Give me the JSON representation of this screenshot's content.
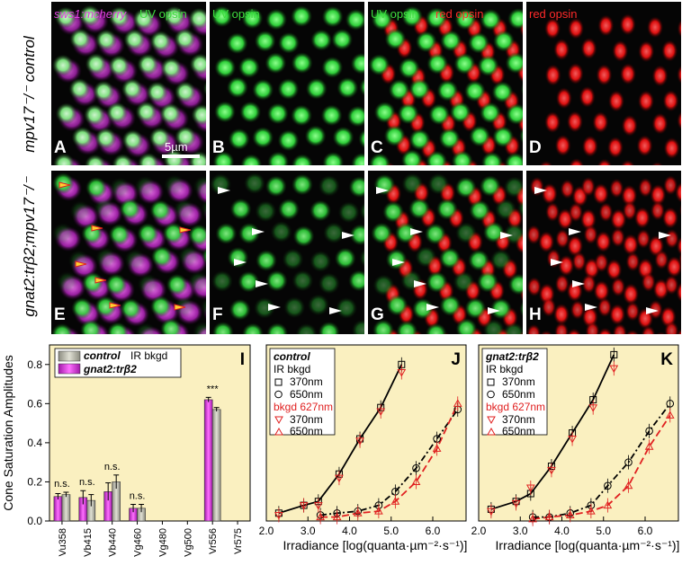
{
  "rows": [
    {
      "label": "mpv17⁻/⁻ control"
    },
    {
      "label": "gnat2:trβ2;mpv17⁻/⁻"
    }
  ],
  "panels": [
    {
      "letter": "A",
      "tag1": "sws1:mcherry",
      "tag2": "UV opsin"
    },
    {
      "letter": "B",
      "tag1": "UV opsin"
    },
    {
      "letter": "C",
      "tag1": "UV opsin",
      "tag2": "red opsin"
    },
    {
      "letter": "D",
      "tag1": "red opsin"
    },
    {
      "letter": "E"
    },
    {
      "letter": "F"
    },
    {
      "letter": "G"
    },
    {
      "letter": "H"
    }
  ],
  "scale_bar": "5µm",
  "colors": {
    "magenta": "#e040e0",
    "green": "#3fdc3f",
    "red": "#ff1e1e",
    "cream": "#faf0c0",
    "bar_gray": "#b8b8a8"
  },
  "chart_data": [
    {
      "type": "bar",
      "panel": "I",
      "ylabel": "Cone Saturation Amplitudes",
      "ylim": [
        0,
        0.9
      ],
      "yticks": [
        "0.0",
        "0.2",
        "0.4",
        "0.6",
        "0.8"
      ],
      "categories": [
        "Vu358",
        "Vb415",
        "Vb440",
        "Vg460",
        "Vg480",
        "Vg500",
        "Vr556",
        "Vr575"
      ],
      "legend": {
        "title_a": "control",
        "title_b": "IR bkgd",
        "entry2": "gnat2:trβ2"
      },
      "series": [
        {
          "name": "gnat2:trβ2",
          "values": [
            0.125,
            0.12,
            0.15,
            0.065,
            null,
            null,
            0.62,
            null
          ],
          "errors": [
            0.015,
            0.035,
            0.045,
            0.02,
            null,
            null,
            0.012,
            null
          ]
        },
        {
          "name": "control",
          "values": [
            0.135,
            0.105,
            0.2,
            0.065,
            null,
            null,
            0.57,
            null
          ],
          "errors": [
            0.012,
            0.03,
            0.035,
            0.02,
            null,
            null,
            0.01,
            null
          ]
        }
      ],
      "annotations": [
        {
          "category": "Vu358",
          "text": "n.s."
        },
        {
          "category": "Vb415",
          "text": "n.s."
        },
        {
          "category": "Vb440",
          "text": "n.s."
        },
        {
          "category": "Vg460",
          "text": "n.s."
        },
        {
          "category": "Vr556",
          "text": "***"
        }
      ]
    },
    {
      "type": "scatter",
      "panel": "J",
      "xlabel": "Irradiance [log(quanta·µm⁻²·s⁻¹)]",
      "xlim": [
        2.0,
        6.8
      ],
      "ylim": [
        0,
        0.9
      ],
      "xticks": [
        "2.0",
        "3.0",
        "4.0",
        "5.0",
        "6.0"
      ],
      "legend": {
        "title": "control",
        "group1": "IR bkgd",
        "group2": "bkgd 627nm",
        "e370": "370nm",
        "e650": "650nm"
      },
      "series": [
        {
          "name": "370nm IR bkgd",
          "x": [
            2.3,
            2.9,
            3.25,
            3.75,
            4.25,
            4.75,
            5.25
          ],
          "y": [
            0.04,
            0.08,
            0.1,
            0.24,
            0.42,
            0.58,
            0.8
          ]
        },
        {
          "name": "650nm IR bkgd",
          "x": [
            3.3,
            3.7,
            4.2,
            4.7,
            5.1,
            5.6,
            6.1,
            6.6
          ],
          "y": [
            0.03,
            0.04,
            0.05,
            0.08,
            0.15,
            0.27,
            0.42,
            0.57
          ]
        },
        {
          "name": "370nm bkgd 627nm",
          "x": [
            2.3,
            2.9,
            3.25,
            3.75,
            4.25,
            4.75,
            5.25
          ],
          "y": [
            0.03,
            0.08,
            0.08,
            0.22,
            0.41,
            0.56,
            0.76
          ]
        },
        {
          "name": "650nm bkgd 627nm",
          "x": [
            3.3,
            3.7,
            4.2,
            4.7,
            5.1,
            5.6,
            6.1,
            6.6
          ],
          "y": [
            0.02,
            0.02,
            0.04,
            0.05,
            0.1,
            0.2,
            0.37,
            0.6
          ]
        }
      ]
    },
    {
      "type": "scatter",
      "panel": "K",
      "xlabel": "Irradiance [log(quanta·µm⁻²·s⁻¹)]",
      "xlim": [
        2.0,
        6.8
      ],
      "ylim": [
        0,
        0.9
      ],
      "xticks": [
        "2.0",
        "3.0",
        "4.0",
        "5.0",
        "6.0"
      ],
      "legend": {
        "title": "gnat2:trβ2",
        "group1": "IR bkgd",
        "group2": "bkgd 627nm",
        "e370": "370nm",
        "e650": "650nm"
      },
      "series": [
        {
          "name": "370nm IR bkgd",
          "x": [
            2.3,
            2.9,
            3.25,
            3.75,
            4.25,
            4.75,
            5.25
          ],
          "y": [
            0.06,
            0.1,
            0.14,
            0.28,
            0.45,
            0.62,
            0.85
          ]
        },
        {
          "name": "650nm IR bkgd",
          "x": [
            3.3,
            3.7,
            4.2,
            4.7,
            5.1,
            5.6,
            6.1,
            6.6
          ],
          "y": [
            0.02,
            0.02,
            0.04,
            0.08,
            0.18,
            0.3,
            0.46,
            0.6
          ]
        },
        {
          "name": "370nm bkgd 627nm",
          "x": [
            2.3,
            2.9,
            3.25,
            3.75,
            4.25,
            4.75,
            5.25
          ],
          "y": [
            0.05,
            0.09,
            0.17,
            0.26,
            0.42,
            0.58,
            0.78
          ]
        },
        {
          "name": "650nm bkgd 627nm",
          "x": [
            3.3,
            3.7,
            4.2,
            4.7,
            5.1,
            5.6,
            6.1,
            6.6
          ],
          "y": [
            0.01,
            0.02,
            0.03,
            0.05,
            0.08,
            0.18,
            0.38,
            0.54
          ]
        }
      ]
    }
  ]
}
